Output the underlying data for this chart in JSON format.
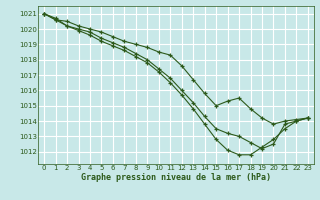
{
  "title": "Graphe pression niveau de la mer (hPa)",
  "bg_color": "#c8e8e8",
  "grid_color": "#ffffff",
  "line_color": "#2d5a1b",
  "xlim": [
    -0.5,
    23.5
  ],
  "ylim": [
    1011.2,
    1021.5
  ],
  "yticks": [
    1012,
    1013,
    1014,
    1015,
    1016,
    1017,
    1018,
    1019,
    1020,
    1021
  ],
  "xticks": [
    0,
    1,
    2,
    3,
    4,
    5,
    6,
    7,
    8,
    9,
    10,
    11,
    12,
    13,
    14,
    15,
    16,
    17,
    18,
    19,
    20,
    21,
    22,
    23
  ],
  "series": [
    [
      1021.0,
      1020.6,
      1020.5,
      1020.2,
      1020.0,
      1019.8,
      1019.5,
      1019.2,
      1019.0,
      1018.8,
      1018.5,
      1018.3,
      1017.6,
      1016.7,
      1015.8,
      1015.0,
      1015.3,
      1015.5,
      1014.8,
      1014.2,
      1013.8,
      1014.0,
      1014.1,
      1014.2
    ],
    [
      1021.0,
      1020.7,
      1020.2,
      1020.0,
      1019.8,
      1019.4,
      1019.1,
      1018.8,
      1018.4,
      1018.0,
      1017.4,
      1016.8,
      1016.0,
      1015.2,
      1014.3,
      1013.5,
      1013.2,
      1013.0,
      1012.6,
      1012.2,
      1012.5,
      1013.8,
      1014.0,
      1014.2
    ],
    [
      1021.0,
      1020.6,
      1020.2,
      1019.9,
      1019.6,
      1019.2,
      1018.9,
      1018.6,
      1018.2,
      1017.8,
      1017.2,
      1016.5,
      1015.7,
      1014.8,
      1013.8,
      1012.8,
      1012.1,
      1011.8,
      1011.8,
      1012.3,
      1012.8,
      1013.5,
      1014.0,
      1014.2
    ]
  ]
}
